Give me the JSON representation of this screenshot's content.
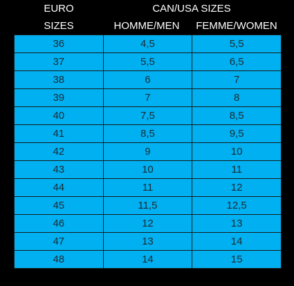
{
  "header": {
    "euro": "EURO",
    "sizes": "SIZES",
    "can_usa": "CAN/USA SIZES",
    "men": "HOMME/MEN",
    "women": "FEMME/WOMEN"
  },
  "table": {
    "rows": [
      [
        "36",
        "4,5",
        "5,5"
      ],
      [
        "37",
        "5,5",
        "6,5"
      ],
      [
        "38",
        "6",
        "7"
      ],
      [
        "39",
        "7",
        "8"
      ],
      [
        "40",
        "7,5",
        "8,5"
      ],
      [
        "41",
        "8,5",
        "9,5"
      ],
      [
        "42",
        "9",
        "10"
      ],
      [
        "43",
        "10",
        "11"
      ],
      [
        "44",
        "11",
        "12"
      ],
      [
        "45",
        "11,5",
        "12,5"
      ],
      [
        "46",
        "12",
        "13"
      ],
      [
        "47",
        "13",
        "14"
      ],
      [
        "48",
        "14",
        "15"
      ]
    ]
  }
}
